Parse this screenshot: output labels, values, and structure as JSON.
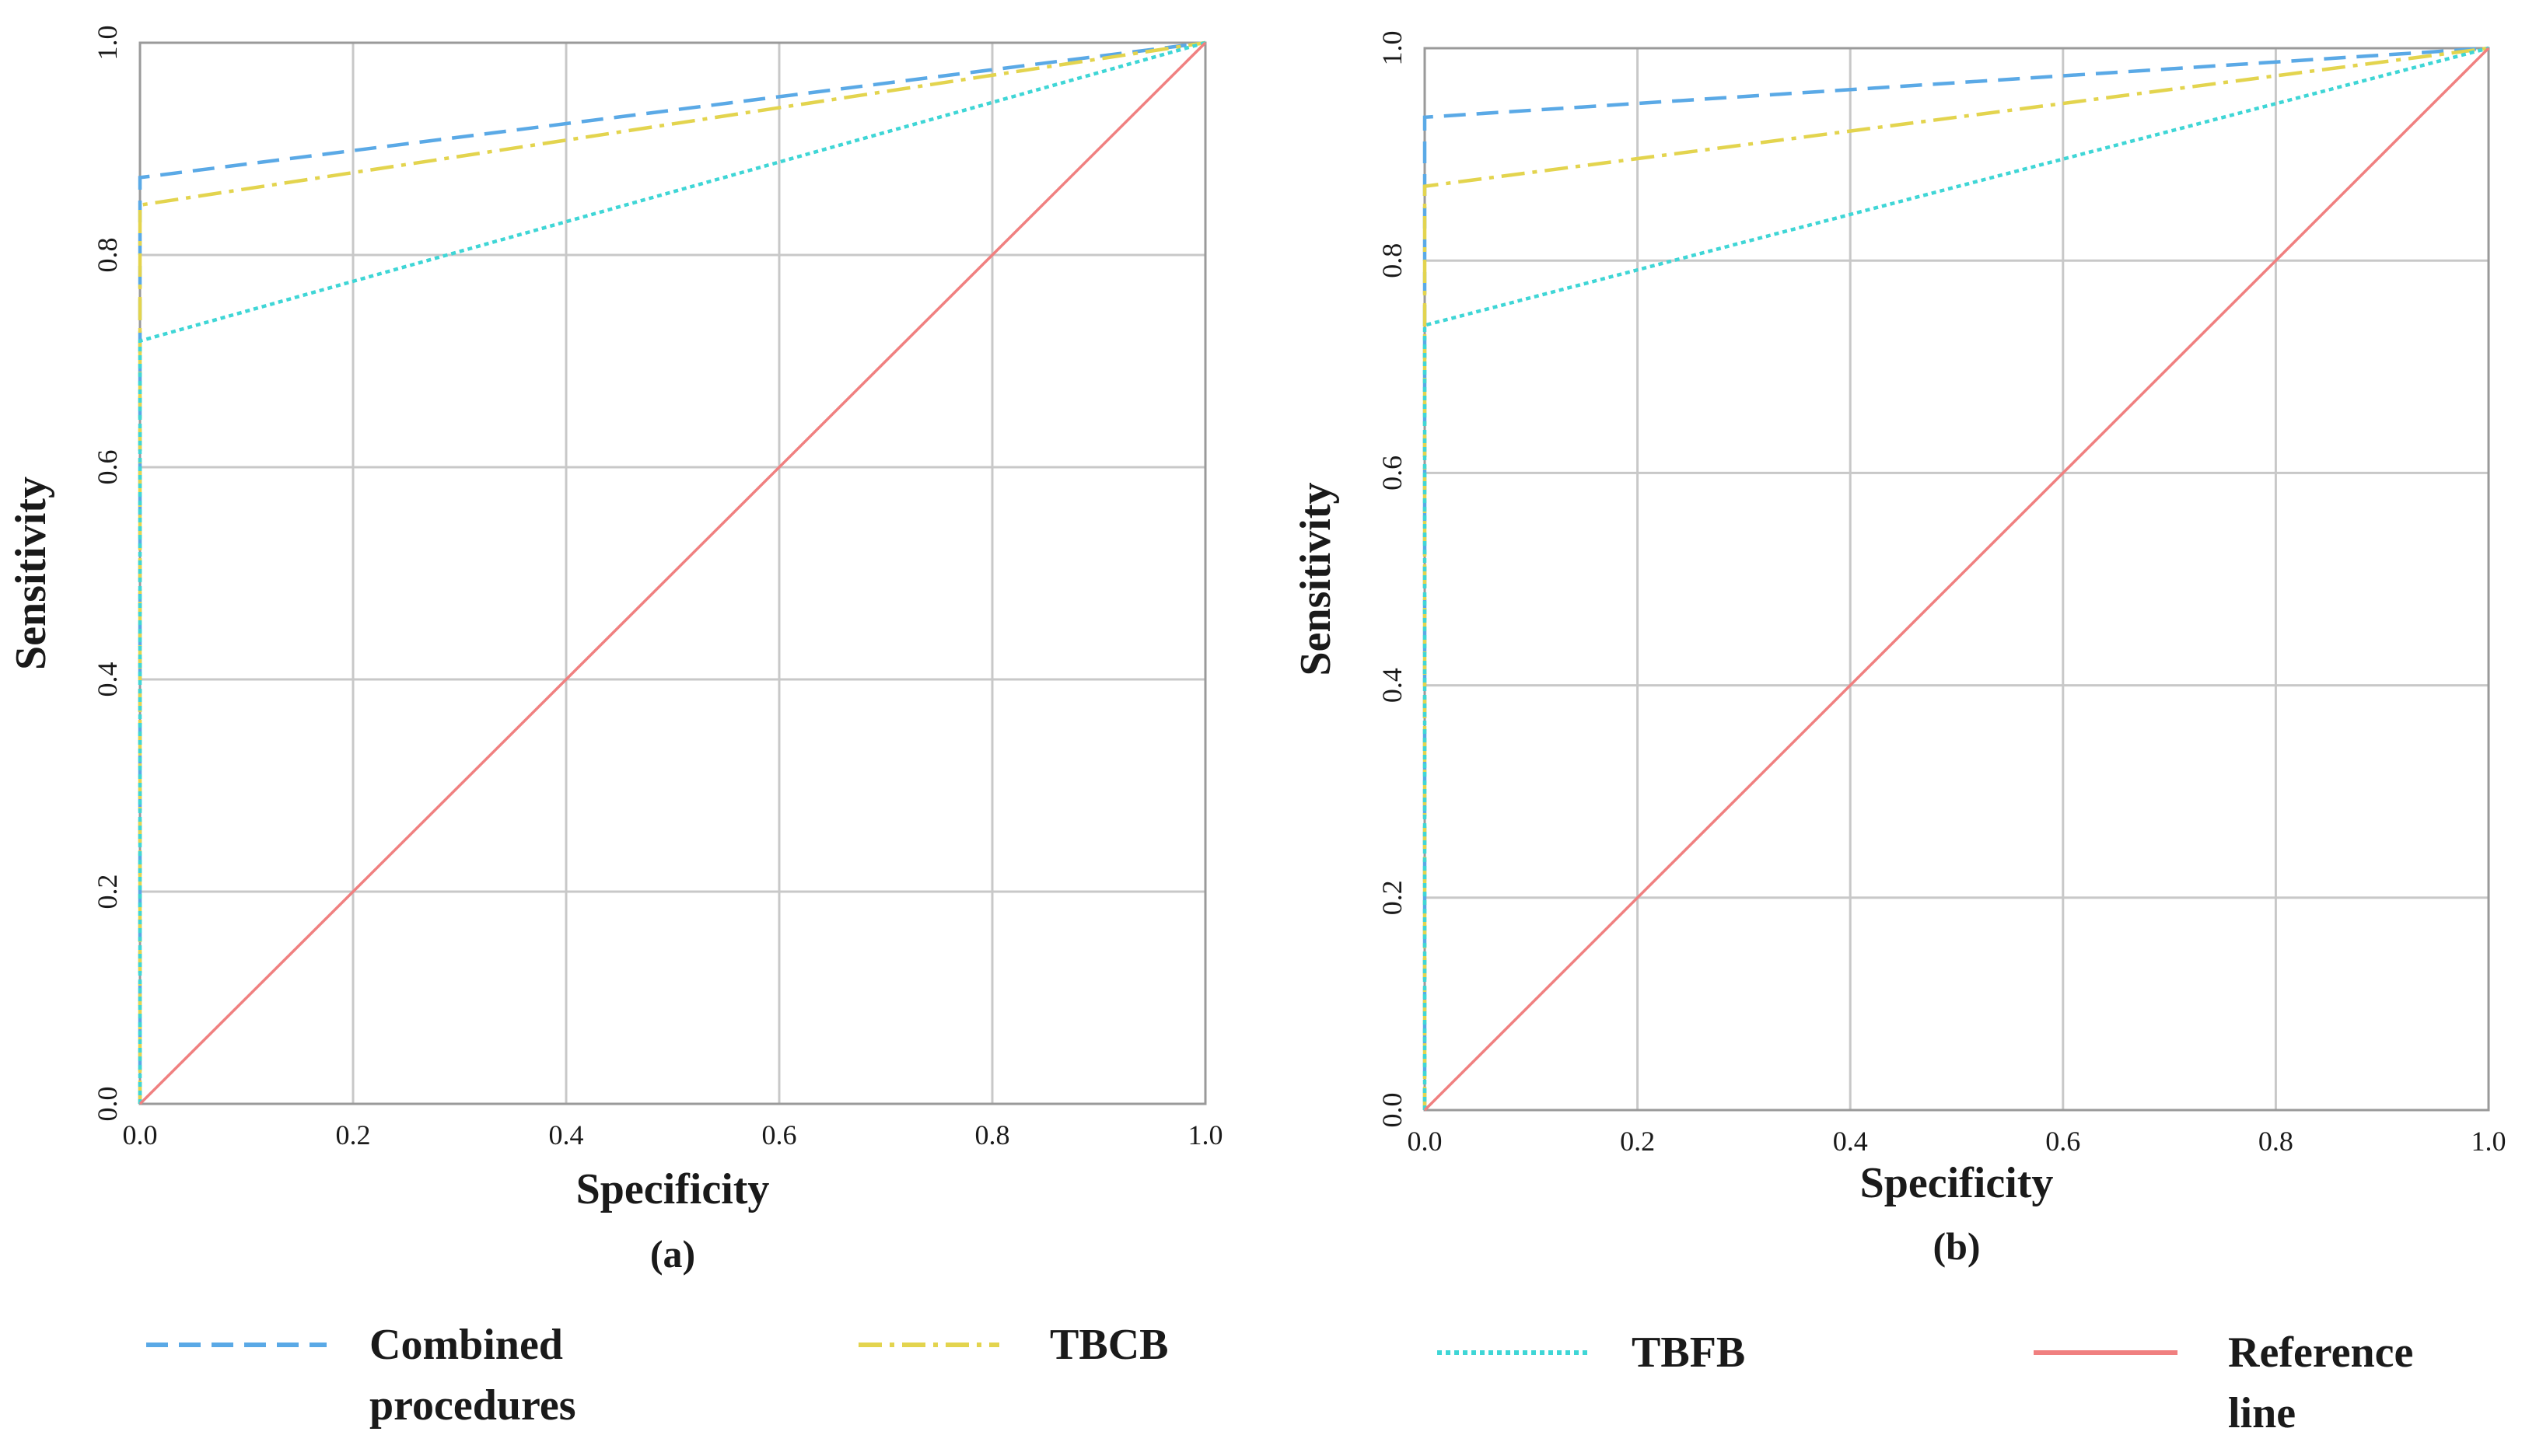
{
  "chart_data": [
    {
      "type": "line",
      "panel_label": "(a)",
      "xlabel": "Specificity",
      "ylabel": "Sensitivity",
      "xlim": [
        0,
        1
      ],
      "ylim": [
        0,
        1
      ],
      "grid": true,
      "x_ticks": [
        "0.0",
        "0.2",
        "0.4",
        "0.6",
        "0.8",
        "1.0"
      ],
      "y_ticks": [
        "0.0",
        "0.2",
        "0.4",
        "0.6",
        "0.8",
        "1.0"
      ],
      "series": [
        {
          "name": "Combined procedures",
          "color": "#5aa9e6",
          "dash": "dashed",
          "points": [
            [
              0,
              0
            ],
            [
              0,
              0.873
            ],
            [
              1,
              1
            ]
          ]
        },
        {
          "name": "TBCB",
          "color": "#e3d44e",
          "dash": "dashdot",
          "points": [
            [
              0,
              0
            ],
            [
              0,
              0.847
            ],
            [
              1,
              1
            ]
          ]
        },
        {
          "name": "TBFB",
          "color": "#3fd6d6",
          "dash": "dotted",
          "points": [
            [
              0,
              0
            ],
            [
              0,
              0.719
            ],
            [
              1,
              1
            ]
          ]
        },
        {
          "name": "Reference line",
          "color": "#f08080",
          "dash": "solid",
          "points": [
            [
              0,
              0
            ],
            [
              1,
              1
            ]
          ]
        }
      ]
    },
    {
      "type": "line",
      "panel_label": "(b)",
      "xlabel": "Specificity",
      "ylabel": "Sensitivity",
      "xlim": [
        0,
        1
      ],
      "ylim": [
        0,
        1
      ],
      "grid": true,
      "x_ticks": [
        "0.0",
        "0.2",
        "0.4",
        "0.6",
        "0.8",
        "1.0"
      ],
      "y_ticks": [
        "0.0",
        "0.2",
        "0.4",
        "0.6",
        "0.8",
        "1.0"
      ],
      "series": [
        {
          "name": "Combined procedures",
          "color": "#5aa9e6",
          "dash": "dashed",
          "points": [
            [
              0,
              0
            ],
            [
              0,
              0.935
            ],
            [
              1,
              1
            ]
          ]
        },
        {
          "name": "TBCB",
          "color": "#e3d44e",
          "dash": "dashdot",
          "points": [
            [
              0,
              0
            ],
            [
              0,
              0.87
            ],
            [
              1,
              1
            ]
          ]
        },
        {
          "name": "TBFB",
          "color": "#3fd6d6",
          "dash": "dotted",
          "points": [
            [
              0,
              0
            ],
            [
              0,
              0.739
            ],
            [
              1,
              1
            ]
          ]
        },
        {
          "name": "Reference line",
          "color": "#f08080",
          "dash": "solid",
          "points": [
            [
              0,
              0
            ],
            [
              1,
              1
            ]
          ]
        }
      ]
    }
  ],
  "legend": {
    "placement": "bottom",
    "items": [
      {
        "lines": [
          "Combined",
          "procedures"
        ],
        "color": "#5aa9e6",
        "dash": "dashed"
      },
      {
        "lines": [
          "TBCB"
        ],
        "color": "#e3d44e",
        "dash": "dashdot"
      },
      {
        "lines": [
          "TBFB"
        ],
        "color": "#3fd6d6",
        "dash": "dotted"
      },
      {
        "lines": [
          "Reference",
          "line"
        ],
        "color": "#f08080",
        "dash": "solid"
      }
    ]
  }
}
